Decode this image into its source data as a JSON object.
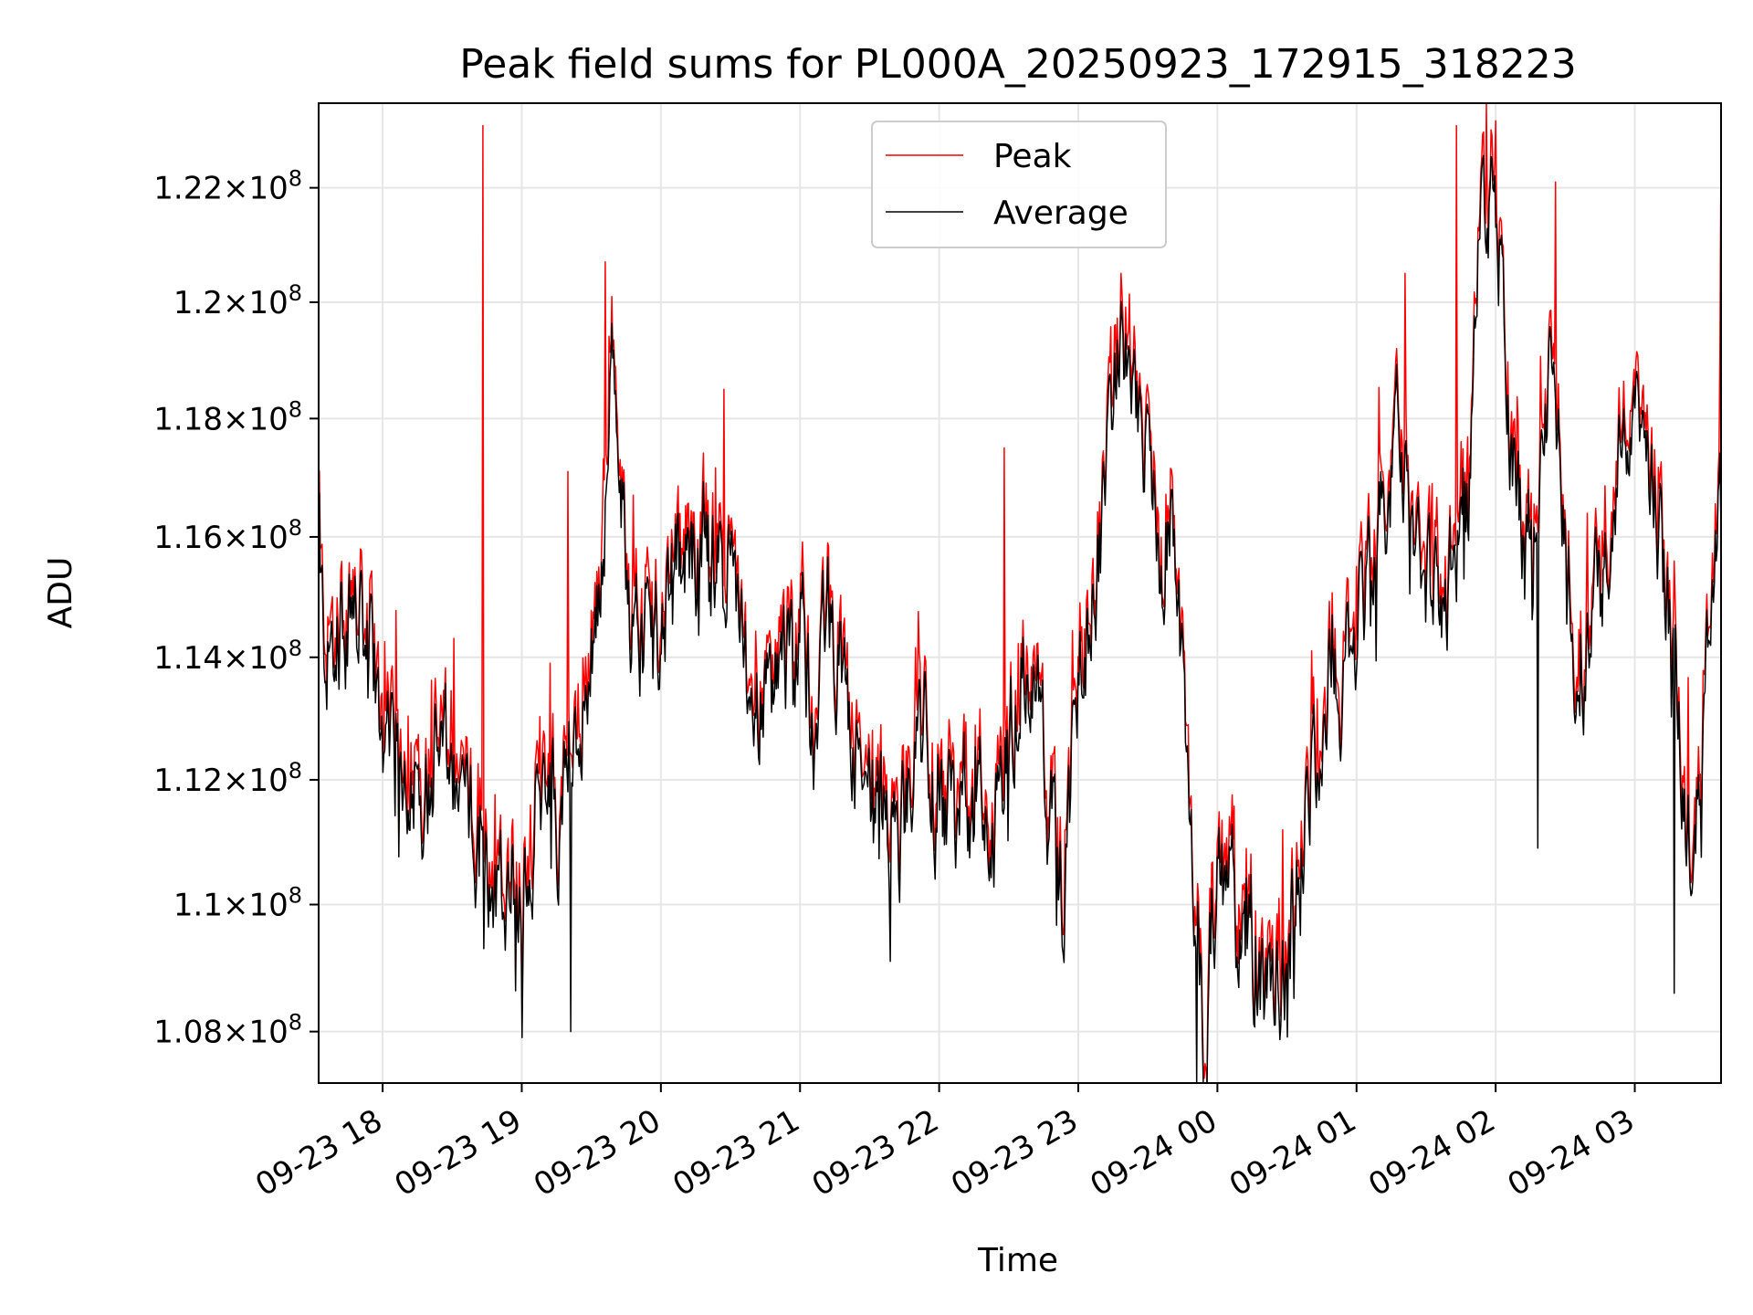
{
  "chart_data": {
    "type": "line",
    "title": "Peak field sums for PL000A_20250923_172915_318223",
    "xlabel": "Time",
    "ylabel": "ADU",
    "y_scale": "log",
    "ylim": [
      107200000,
      123500000
    ],
    "x_range_hours": [
      17.54,
      27.62
    ],
    "x_ticks": [
      {
        "hour": 18,
        "label": "09-23 18"
      },
      {
        "hour": 19,
        "label": "09-23 19"
      },
      {
        "hour": 20,
        "label": "09-23 20"
      },
      {
        "hour": 21,
        "label": "09-23 21"
      },
      {
        "hour": 22,
        "label": "09-23 22"
      },
      {
        "hour": 23,
        "label": "09-23 23"
      },
      {
        "hour": 24,
        "label": "09-24 00"
      },
      {
        "hour": 25,
        "label": "09-24 01"
      },
      {
        "hour": 26,
        "label": "09-24 02"
      },
      {
        "hour": 27,
        "label": "09-24 03"
      }
    ],
    "y_ticks": [
      {
        "value": 108000000,
        "mantissa": "1.08",
        "base": "10",
        "exp": "8"
      },
      {
        "value": 110000000,
        "mantissa": "1.1",
        "base": "10",
        "exp": "8"
      },
      {
        "value": 112000000,
        "mantissa": "1.12",
        "base": "10",
        "exp": "8"
      },
      {
        "value": 114000000,
        "mantissa": "1.14",
        "base": "10",
        "exp": "8"
      },
      {
        "value": 116000000,
        "mantissa": "1.16",
        "base": "10",
        "exp": "8"
      },
      {
        "value": 118000000,
        "mantissa": "1.18",
        "base": "10",
        "exp": "8"
      },
      {
        "value": 120000000,
        "mantissa": "1.2",
        "base": "10",
        "exp": "8"
      },
      {
        "value": 122000000,
        "mantissa": "1.22",
        "base": "10",
        "exp": "8"
      }
    ],
    "grid": true,
    "legend_position": "top-center",
    "series": [
      {
        "name": "Peak",
        "color": "#ff0000",
        "spikes": [
          [
            17.55,
            115.8
          ],
          [
            18.72,
            123.1
          ],
          [
            19.33,
            117.1
          ],
          [
            19.6,
            120.7
          ],
          [
            19.8,
            116.7
          ],
          [
            20.45,
            118.5
          ],
          [
            22.47,
            117.5
          ],
          [
            25.35,
            120.5
          ],
          [
            25.72,
            123.1
          ],
          [
            25.93,
            123.5
          ],
          [
            26.43,
            122.1
          ],
          [
            27.62,
            122.2
          ]
        ]
      },
      {
        "name": "Average",
        "color": "#000000",
        "dips": [
          [
            18.73,
            109.3
          ],
          [
            19.35,
            108.0
          ],
          [
            21.65,
            109.1
          ],
          [
            23.85,
            107.2
          ],
          [
            26.3,
            110.9
          ],
          [
            27.28,
            108.6
          ]
        ]
      }
    ],
    "average_trend": [
      [
        17.55,
        115.0
      ],
      [
        17.6,
        114.0
      ],
      [
        17.7,
        114.5
      ],
      [
        17.8,
        114.8
      ],
      [
        17.9,
        113.8
      ],
      [
        18.0,
        112.4
      ],
      [
        18.1,
        112.2
      ],
      [
        18.2,
        112.4
      ],
      [
        18.3,
        112.0
      ],
      [
        18.4,
        112.6
      ],
      [
        18.5,
        111.8
      ],
      [
        18.6,
        111.6
      ],
      [
        18.7,
        111.0
      ],
      [
        18.8,
        110.5
      ],
      [
        18.9,
        110.4
      ],
      [
        19.0,
        110.6
      ],
      [
        19.05,
        110.3
      ],
      [
        19.1,
        111.5
      ],
      [
        19.15,
        112.3
      ],
      [
        19.25,
        111.4
      ],
      [
        19.4,
        112.2
      ],
      [
        19.45,
        113.5
      ],
      [
        19.55,
        114.8
      ],
      [
        19.65,
        118.5
      ],
      [
        19.7,
        117.2
      ],
      [
        19.8,
        114.5
      ],
      [
        19.9,
        114.3
      ],
      [
        20.0,
        114.6
      ],
      [
        20.1,
        115.8
      ],
      [
        20.2,
        115.6
      ],
      [
        20.3,
        115.9
      ],
      [
        20.4,
        115.6
      ],
      [
        20.5,
        115.3
      ],
      [
        20.6,
        113.8
      ],
      [
        20.7,
        113.2
      ],
      [
        20.8,
        113.3
      ],
      [
        20.9,
        114.0
      ],
      [
        21.0,
        114.7
      ],
      [
        21.1,
        112.6
      ],
      [
        21.2,
        115.0
      ],
      [
        21.3,
        113.7
      ],
      [
        21.4,
        112.3
      ],
      [
        21.5,
        111.8
      ],
      [
        21.6,
        111.4
      ],
      [
        21.7,
        110.6
      ],
      [
        21.8,
        112.3
      ],
      [
        21.9,
        112.5
      ],
      [
        22.0,
        111.2
      ],
      [
        22.1,
        111.2
      ],
      [
        22.2,
        111.8
      ],
      [
        22.3,
        111.6
      ],
      [
        22.4,
        111.4
      ],
      [
        22.5,
        113.0
      ],
      [
        22.6,
        114.0
      ],
      [
        22.7,
        113.3
      ],
      [
        22.8,
        111.3
      ],
      [
        22.9,
        110.0
      ],
      [
        23.0,
        113.7
      ],
      [
        23.1,
        114.6
      ],
      [
        23.2,
        116.5
      ],
      [
        23.3,
        119.6
      ],
      [
        23.4,
        117.9
      ],
      [
        23.5,
        117.6
      ],
      [
        23.6,
        115.3
      ],
      [
        23.7,
        115.8
      ],
      [
        23.8,
        111.7
      ],
      [
        23.9,
        108.0
      ],
      [
        24.0,
        110.7
      ],
      [
        24.1,
        110.2
      ],
      [
        24.2,
        109.4
      ],
      [
        24.3,
        108.7
      ],
      [
        24.4,
        108.6
      ],
      [
        24.5,
        109.1
      ],
      [
        24.6,
        110.8
      ],
      [
        24.7,
        112.2
      ],
      [
        24.8,
        114.0
      ],
      [
        24.9,
        113.6
      ],
      [
        25.0,
        114.5
      ],
      [
        25.1,
        115.4
      ],
      [
        25.2,
        116.5
      ],
      [
        25.3,
        117.6
      ],
      [
        25.4,
        116.6
      ],
      [
        25.5,
        115.2
      ],
      [
        25.6,
        114.7
      ],
      [
        25.7,
        115.8
      ],
      [
        25.8,
        116.5
      ],
      [
        25.9,
        122.0
      ],
      [
        26.0,
        121.9
      ],
      [
        26.1,
        117.8
      ],
      [
        26.2,
        116.0
      ],
      [
        26.3,
        116.2
      ],
      [
        26.4,
        119.5
      ],
      [
        26.5,
        115.6
      ],
      [
        26.6,
        113.6
      ],
      [
        26.7,
        114.6
      ],
      [
        26.8,
        115.5
      ],
      [
        26.9,
        117.4
      ],
      [
        27.0,
        118.0
      ],
      [
        27.1,
        117.3
      ],
      [
        27.2,
        115.5
      ],
      [
        27.3,
        113.6
      ],
      [
        27.4,
        110.8
      ],
      [
        27.5,
        113.5
      ],
      [
        27.6,
        116.5
      ]
    ]
  }
}
